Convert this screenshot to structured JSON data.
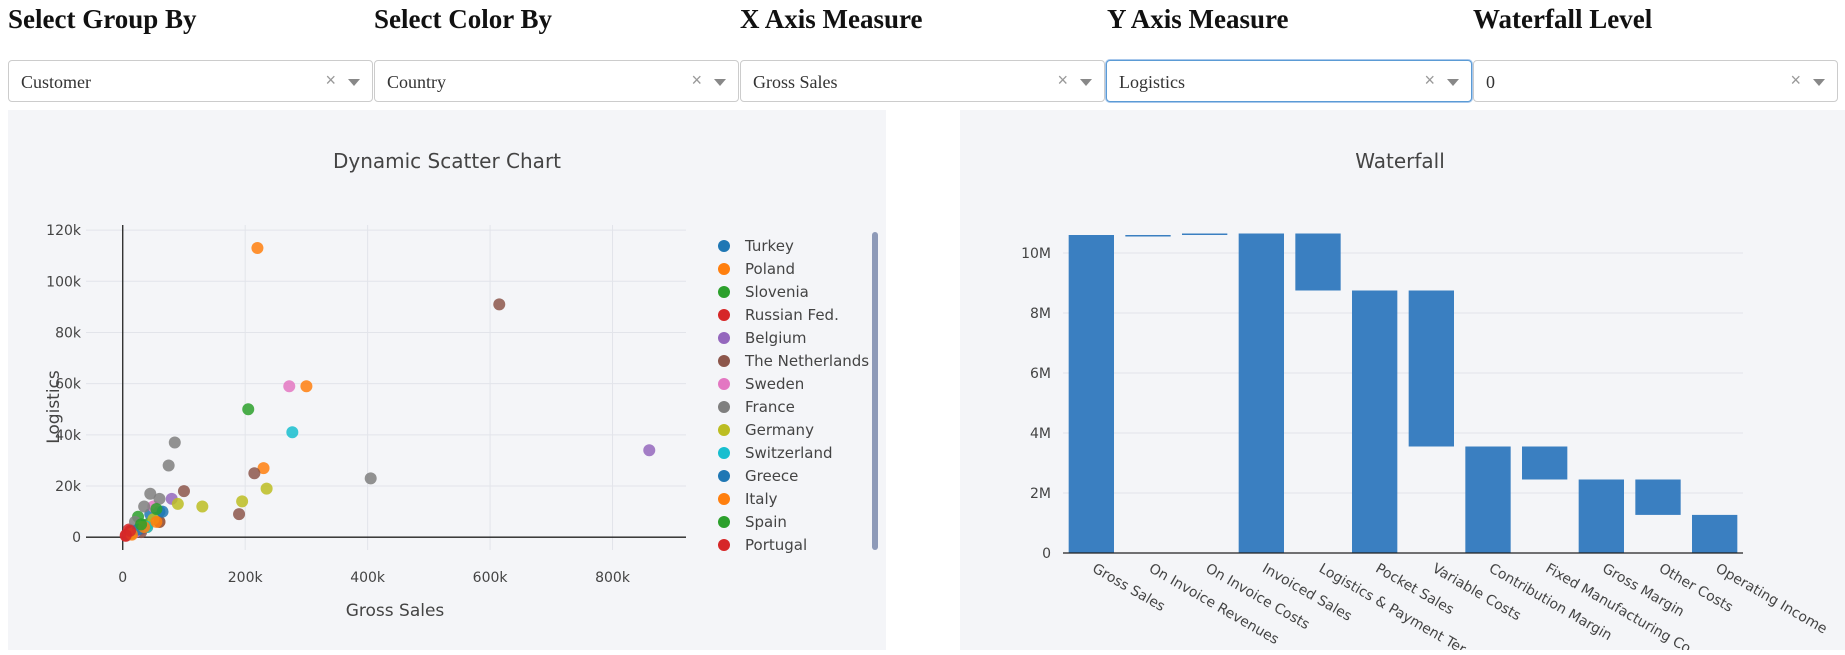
{
  "controls": [
    {
      "title": "Select Group By",
      "value": "Customer"
    },
    {
      "title": "Select Color By",
      "value": "Country"
    },
    {
      "title": "X Axis Measure",
      "value": "Gross Sales"
    },
    {
      "title": "Y Axis Measure",
      "value": "Logistics"
    },
    {
      "title": "Waterfall Level",
      "value": "0"
    }
  ],
  "icons": {
    "clear": "×",
    "dropdown_arrow": "chevron-down-icon"
  },
  "chart_data": [
    {
      "type": "scatter",
      "title": "Dynamic Scatter Chart",
      "xlabel": "Gross Sales",
      "ylabel": "Logistics",
      "xlim": [
        -60000,
        920000
      ],
      "ylim": [
        -5000,
        122000
      ],
      "xticks": [
        0,
        200000,
        400000,
        600000,
        800000
      ],
      "xtick_labels": [
        "0",
        "200k",
        "400k",
        "600k",
        "800k"
      ],
      "yticks": [
        0,
        20000,
        40000,
        60000,
        80000,
        100000,
        120000
      ],
      "ytick_labels": [
        "0",
        "20k",
        "40k",
        "60k",
        "80k",
        "100k",
        "120k"
      ],
      "grid": true,
      "legend_position": "right",
      "series": [
        {
          "name": "Turkey",
          "color": "#1f77b4",
          "x": [
            60000,
            45000,
            30000,
            15000,
            8000
          ],
          "y": [
            10000,
            9000,
            5000,
            2500,
            1000
          ]
        },
        {
          "name": "Poland",
          "color": "#ff7f0e",
          "x": [
            220000,
            300000,
            230000,
            60000,
            40000,
            25000,
            10000
          ],
          "y": [
            113000,
            59000,
            27000,
            6000,
            4000,
            3000,
            1500
          ]
        },
        {
          "name": "Slovenia",
          "color": "#2ca02c",
          "x": [
            25000,
            40000,
            15000
          ],
          "y": [
            8000,
            5000,
            2000
          ]
        },
        {
          "name": "Russian Fed.",
          "color": "#d62728",
          "x": [
            10000,
            20000,
            5000
          ],
          "y": [
            3000,
            2000,
            500
          ]
        },
        {
          "name": "Belgium",
          "color": "#9467bd",
          "x": [
            860000,
            80000,
            30000
          ],
          "y": [
            34000,
            15000,
            3000
          ]
        },
        {
          "name": "The Netherlands",
          "color": "#8c564b",
          "x": [
            615000,
            215000,
            190000,
            100000,
            60000,
            30000
          ],
          "y": [
            91000,
            25000,
            9000,
            18000,
            6000,
            2000
          ]
        },
        {
          "name": "Sweden",
          "color": "#e377c2",
          "x": [
            272000,
            50000,
            20000
          ],
          "y": [
            59000,
            12000,
            2000
          ]
        },
        {
          "name": "France",
          "color": "#7f7f7f",
          "x": [
            405000,
            85000,
            75000,
            45000,
            35000,
            20000,
            60000
          ],
          "y": [
            23000,
            37000,
            28000,
            17000,
            12000,
            6000,
            15000
          ]
        },
        {
          "name": "Germany",
          "color": "#bcbd22",
          "x": [
            235000,
            195000,
            130000,
            90000,
            50000,
            30000,
            15000
          ],
          "y": [
            19000,
            14000,
            12000,
            13000,
            7000,
            4000,
            1500
          ]
        },
        {
          "name": "Switzerland",
          "color": "#17becf",
          "x": [
            277000,
            40000
          ],
          "y": [
            41000,
            4000
          ]
        },
        {
          "name": "Greece",
          "color": "#1f77b4",
          "x": [
            65000,
            25000
          ],
          "y": [
            10000,
            3000
          ]
        },
        {
          "name": "Italy",
          "color": "#ff7f0e",
          "x": [
            55000,
            35000,
            15000
          ],
          "y": [
            6000,
            4000,
            1000
          ]
        },
        {
          "name": "Spain",
          "color": "#2ca02c",
          "x": [
            205000,
            55000,
            30000
          ],
          "y": [
            50000,
            11000,
            5000
          ]
        },
        {
          "name": "Portugal",
          "color": "#d62728",
          "x": [
            12000,
            5000
          ],
          "y": [
            2500,
            800
          ]
        }
      ]
    },
    {
      "type": "bar",
      "subtype": "waterfall",
      "title": "Waterfall",
      "color": "#3a7fc1",
      "categories": [
        "Gross Sales",
        "On Invoice Revenues",
        "On Invoice Costs",
        "Invoiced Sales",
        "Logistics & Payment Terms",
        "Pocket Sales",
        "Variable Costs",
        "Contribution Margin",
        "Fixed Manufacturing Costs",
        "Gross Margin",
        "Other Costs",
        "Operating Income"
      ],
      "category_labels": [
        "Gross Sales",
        "On Invoice Revenues",
        "On Invoice Costs",
        "Invoiced Sales",
        "Logistics & Payment Ter",
        "Pocket Sales",
        "Variable Costs",
        "Contribution Margin",
        "Fixed Manufacturing Co",
        "Gross Margin",
        "Other Costs",
        "Operating Income"
      ],
      "bars": [
        {
          "base": 0,
          "top": 10600000
        },
        {
          "base": 10600000,
          "top": 10600000
        },
        {
          "base": 10600000,
          "top": 10650000
        },
        {
          "base": 0,
          "top": 10650000
        },
        {
          "base": 8750000,
          "top": 10650000
        },
        {
          "base": 0,
          "top": 8750000
        },
        {
          "base": 3550000,
          "top": 8750000
        },
        {
          "base": 0,
          "top": 3550000
        },
        {
          "base": 2450000,
          "top": 3550000
        },
        {
          "base": 0,
          "top": 2450000
        },
        {
          "base": 1270000,
          "top": 2450000
        },
        {
          "base": 0,
          "top": 1270000
        }
      ],
      "ylim": [
        0,
        11000000
      ],
      "yticks": [
        0,
        2000000,
        4000000,
        6000000,
        8000000,
        10000000
      ],
      "ytick_labels": [
        "0",
        "2M",
        "4M",
        "6M",
        "8M",
        "10M"
      ],
      "grid": true
    }
  ]
}
